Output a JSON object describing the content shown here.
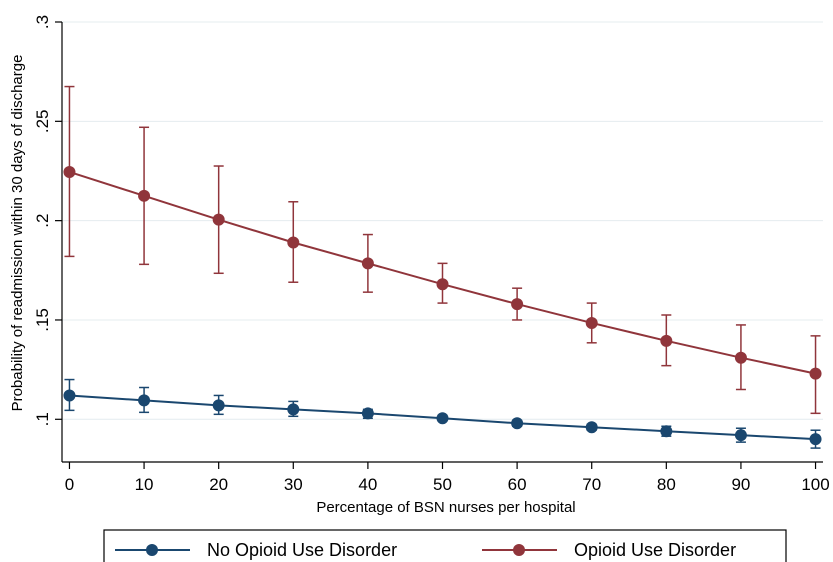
{
  "chart_data": {
    "type": "line",
    "xlabel": "Percentage of BSN nurses per hospital",
    "ylabel": "Probability of readmission within 30 days of discharge",
    "x": [
      0,
      10,
      20,
      30,
      40,
      50,
      60,
      70,
      80,
      90,
      100
    ],
    "x_tick_labels": [
      "0",
      "10",
      "20",
      "30",
      "40",
      "50",
      "60",
      "70",
      "80",
      "90",
      "100"
    ],
    "y_ticks": [
      0.1,
      0.15,
      0.2,
      0.25,
      0.3
    ],
    "y_tick_labels": [
      ".1",
      ".15",
      ".2",
      ".25",
      ".3"
    ],
    "xlim": [
      -1,
      101
    ],
    "ylim": [
      0.0785,
      0.3
    ],
    "grid": "horizontal",
    "legend_position": "bottom",
    "series": [
      {
        "name": "No Opioid Use Disorder",
        "color": "#1a476f",
        "values": [
          0.112,
          0.1095,
          0.107,
          0.105,
          0.103,
          0.1005,
          0.098,
          0.096,
          0.094,
          0.092,
          0.09
        ],
        "ci_low": [
          0.1045,
          0.1035,
          0.1025,
          0.1015,
          0.1005,
          0.0995,
          0.0965,
          0.0945,
          0.0915,
          0.0885,
          0.0855
        ],
        "ci_high": [
          0.12,
          0.116,
          0.112,
          0.109,
          0.105,
          0.102,
          0.0995,
          0.0975,
          0.0965,
          0.0955,
          0.0945
        ]
      },
      {
        "name": "Opioid Use Disorder",
        "color": "#90353b",
        "values": [
          0.2245,
          0.2125,
          0.2005,
          0.189,
          0.1785,
          0.168,
          0.158,
          0.1485,
          0.1395,
          0.131,
          0.123
        ],
        "ci_low": [
          0.182,
          0.178,
          0.1735,
          0.169,
          0.164,
          0.1585,
          0.15,
          0.1385,
          0.127,
          0.115,
          0.103
        ],
        "ci_high": [
          0.2675,
          0.247,
          0.2275,
          0.2095,
          0.193,
          0.1785,
          0.166,
          0.1585,
          0.1525,
          0.1475,
          0.142
        ]
      }
    ]
  }
}
